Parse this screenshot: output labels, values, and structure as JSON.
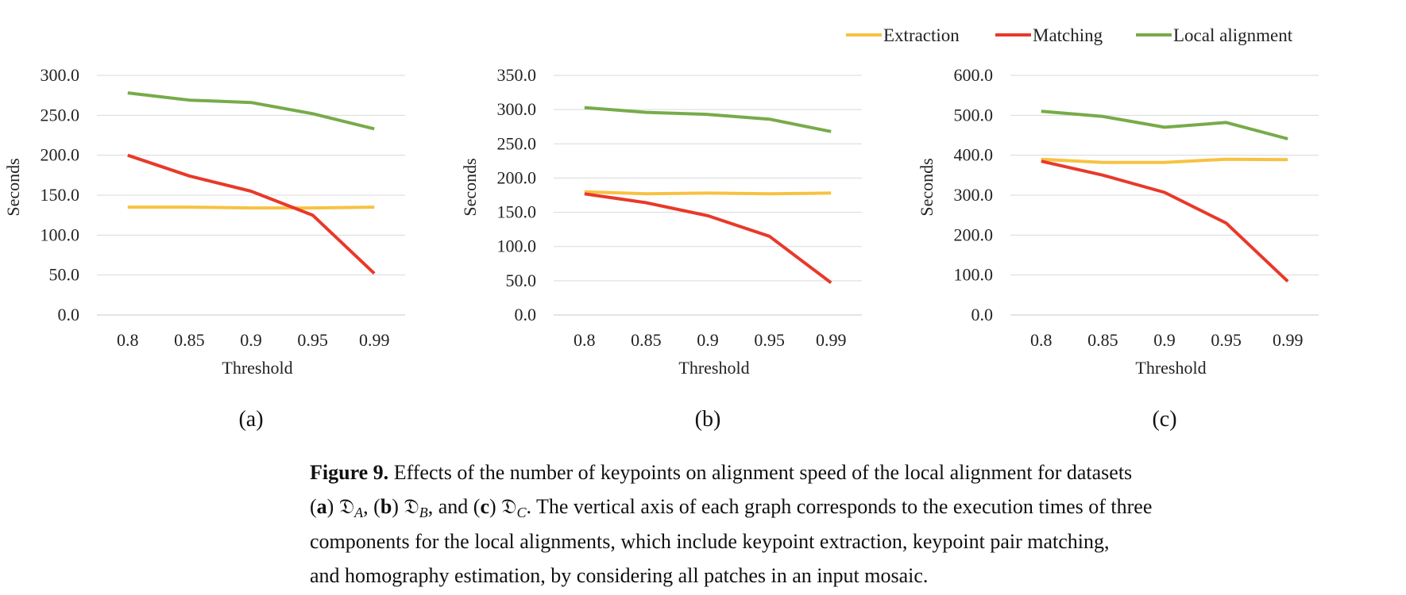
{
  "legend": [
    {
      "name": "Extraction",
      "color": "#F7C242"
    },
    {
      "name": "Matching",
      "color": "#E8392A"
    },
    {
      "name": "Local alignment",
      "color": "#77AB4A"
    }
  ],
  "chart_data": [
    {
      "type": "line",
      "panel_label": "(a)",
      "xlabel": "Threshold",
      "ylabel": "Seconds",
      "categories": [
        "0.8",
        "0.85",
        "0.9",
        "0.95",
        "0.99"
      ],
      "ylim": [
        0,
        300
      ],
      "yticks": [
        "0.0",
        "50.0",
        "100.0",
        "150.0",
        "200.0",
        "250.0",
        "300.0"
      ],
      "grid": true,
      "series": [
        {
          "name": "Extraction",
          "values": [
            135,
            135,
            134,
            134,
            135
          ]
        },
        {
          "name": "Matching",
          "values": [
            200,
            174,
            155,
            125,
            52
          ]
        },
        {
          "name": "Local alignment",
          "values": [
            278,
            269,
            266,
            252,
            233
          ]
        }
      ]
    },
    {
      "type": "line",
      "panel_label": "(b)",
      "xlabel": "Threshold",
      "ylabel": "Seconds",
      "categories": [
        "0.8",
        "0.85",
        "0.9",
        "0.95",
        "0.99"
      ],
      "ylim": [
        0,
        350
      ],
      "yticks": [
        "0.0",
        "50.0",
        "100.0",
        "150.0",
        "200.0",
        "250.0",
        "300.0",
        "350.0"
      ],
      "grid": true,
      "series": [
        {
          "name": "Extraction",
          "values": [
            180,
            177,
            178,
            177,
            178
          ]
        },
        {
          "name": "Matching",
          "values": [
            177,
            164,
            145,
            115,
            47
          ]
        },
        {
          "name": "Local alignment",
          "values": [
            303,
            296,
            293,
            286,
            268
          ]
        }
      ]
    },
    {
      "type": "line",
      "panel_label": "(c)",
      "xlabel": "Threshold",
      "ylabel": "Seconds",
      "categories": [
        "0.8",
        "0.85",
        "0.9",
        "0.95",
        "0.99"
      ],
      "ylim": [
        0,
        600
      ],
      "yticks": [
        "0.0",
        "100.0",
        "200.0",
        "300.0",
        "400.0",
        "500.0",
        "600.0"
      ],
      "grid": true,
      "series": [
        {
          "name": "Extraction",
          "values": [
            390,
            382,
            382,
            390,
            389
          ]
        },
        {
          "name": "Matching",
          "values": [
            385,
            350,
            307,
            230,
            84
          ]
        },
        {
          "name": "Local alignment",
          "values": [
            510,
            497,
            470,
            482,
            441
          ]
        }
      ]
    }
  ],
  "caption": {
    "label": "Figure 9.",
    "text1": " Effects of the number of keypoints on alignment speed of the local alignment for datasets",
    "part_a_label": "a",
    "part_a_symbol": "𝔇",
    "part_a_sub": "A",
    "part_b_label": "b",
    "part_b_symbol": "𝔇",
    "part_b_sub": "B",
    "part_c_label": "c",
    "part_c_symbol": "𝔇",
    "part_c_sub": "C",
    "text2": ". The vertical axis of each graph corresponds to the execution times of three",
    "line3": "components for the local alignments, which include keypoint extraction, keypoint pair matching,",
    "line4": "and homography estimation, by considering all patches in an input mosaic."
  }
}
